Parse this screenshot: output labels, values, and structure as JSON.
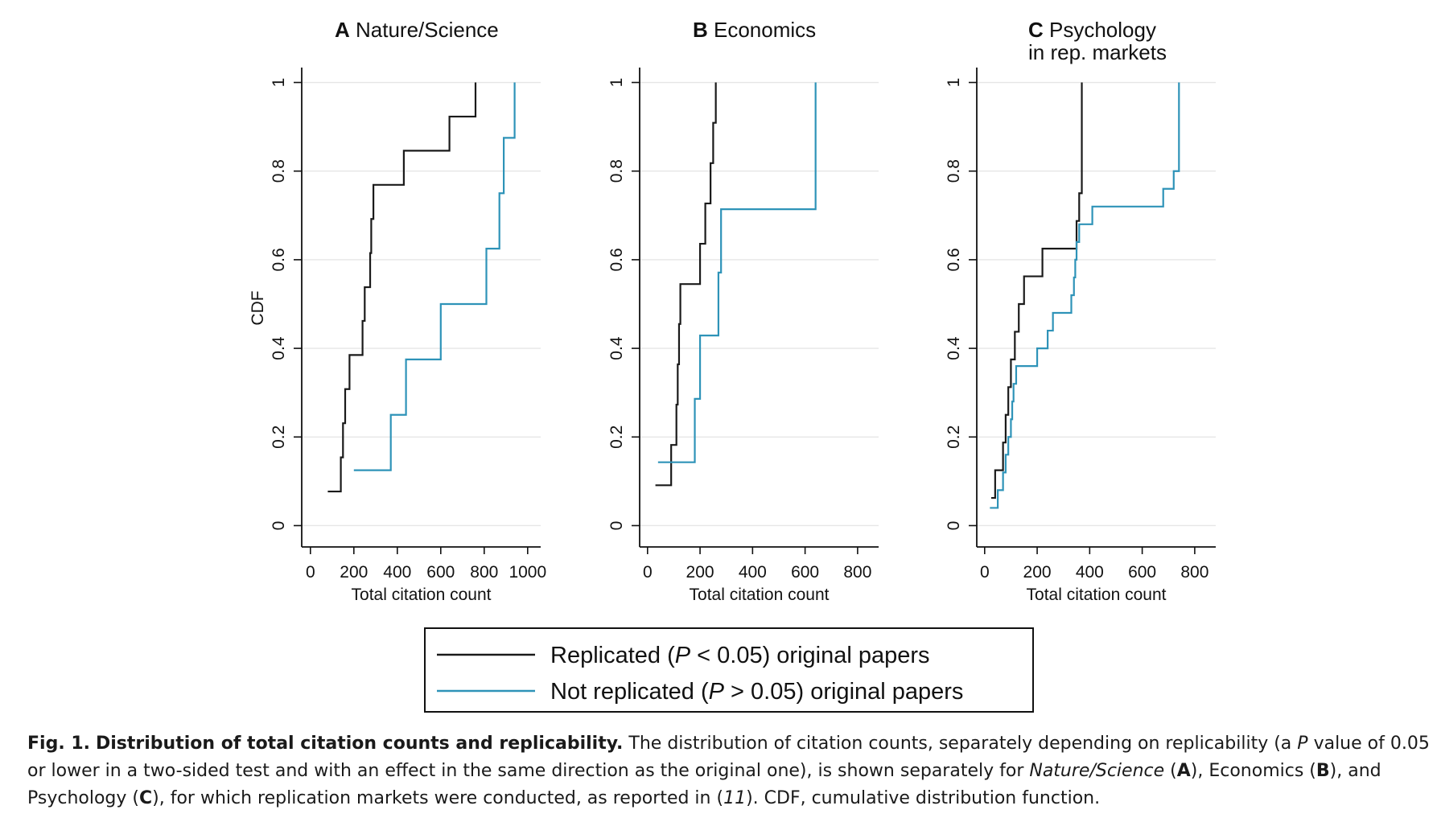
{
  "figure": {
    "ylabel": "CDF",
    "legend": {
      "entries": [
        {
          "color": "#1a1a1a",
          "pre": "Replicated (",
          "ital": "P",
          "post": " < 0.05) original papers"
        },
        {
          "color": "#2e93b8",
          "pre": "Not replicated (",
          "ital": "P",
          "post": " > 0.05) original papers"
        }
      ]
    }
  },
  "caption": {
    "fig_label": "Fig. 1.",
    "title": "Distribution of total citation counts and replicability.",
    "text_1": "The distribution of citation counts, separately depending on replicability (a ",
    "text_p": "P",
    "text_2": " value of 0.05 or lower in a two-sided test and with an effect in the same direction as the original one), is shown separately for ",
    "text_ns": "Nature/Science",
    "text_3": " (",
    "text_a": "A",
    "text_4": "), Economics (",
    "text_b": "B",
    "text_5": "), and Psychology (",
    "text_c": "C",
    "text_6": "), for which replication markets were conducted, as reported in (",
    "text_ref": "11",
    "text_7": "). CDF, cumulative distribution function."
  },
  "chart_data": [
    {
      "type": "line",
      "panel_letter": "A",
      "title_lines": [
        "Nature/Science"
      ],
      "xlabel": "Total citation count",
      "ylabel": "CDF",
      "xlim": [
        -40,
        1060
      ],
      "ylim": [
        -0.03,
        1.03
      ],
      "xticks": [
        0,
        200,
        400,
        600,
        800,
        1000
      ],
      "yticks": [
        0,
        0.2,
        0.4,
        0.6,
        0.8,
        1
      ],
      "ytick_labels": [
        "0",
        "0.2",
        "0.4",
        "0.6",
        "0.8",
        "1"
      ],
      "grid": true,
      "series": [
        {
          "name": "Replicated (P < 0.05) original papers",
          "color": "#1a1a1a",
          "x": [
            80,
            140,
            150,
            160,
            180,
            240,
            250,
            275,
            280,
            290,
            430,
            640,
            760
          ],
          "y": [
            0.077,
            0.154,
            0.231,
            0.308,
            0.385,
            0.462,
            0.538,
            0.615,
            0.692,
            0.769,
            0.846,
            0.923,
            1.0
          ]
        },
        {
          "name": "Not replicated (P > 0.05) original papers",
          "color": "#2e93b8",
          "x": [
            200,
            370,
            440,
            600,
            810,
            870,
            890,
            940
          ],
          "y": [
            0.125,
            0.25,
            0.375,
            0.5,
            0.625,
            0.75,
            0.875,
            1.0
          ]
        }
      ]
    },
    {
      "type": "line",
      "panel_letter": "B",
      "title_lines": [
        "Economics"
      ],
      "xlabel": "Total citation count",
      "ylabel": "",
      "xlim": [
        -30,
        880
      ],
      "ylim": [
        -0.03,
        1.03
      ],
      "xticks": [
        0,
        200,
        400,
        600,
        800
      ],
      "yticks": [
        0,
        0.2,
        0.4,
        0.6,
        0.8,
        1
      ],
      "ytick_labels": [
        "0",
        "0.2",
        "0.4",
        "0.6",
        "0.8",
        "1"
      ],
      "grid": true,
      "series": [
        {
          "name": "Replicated (P < 0.05) original papers",
          "color": "#1a1a1a",
          "x": [
            30,
            90,
            110,
            115,
            120,
            125,
            200,
            220,
            240,
            250,
            260
          ],
          "y": [
            0.091,
            0.182,
            0.273,
            0.364,
            0.455,
            0.545,
            0.636,
            0.727,
            0.818,
            0.909,
            1.0
          ]
        },
        {
          "name": "Not replicated (P > 0.05) original papers",
          "color": "#2e93b8",
          "x": [
            40,
            180,
            200,
            270,
            280,
            640
          ],
          "y": [
            0.143,
            0.286,
            0.429,
            0.571,
            0.714,
            1.0
          ]
        }
      ]
    },
    {
      "type": "line",
      "panel_letter": "C",
      "title_lines": [
        "Psychology",
        "in rep. markets"
      ],
      "xlabel": "Total citation count",
      "ylabel": "",
      "xlim": [
        -30,
        880
      ],
      "ylim": [
        -0.03,
        1.03
      ],
      "xticks": [
        0,
        200,
        400,
        600,
        800
      ],
      "yticks": [
        0,
        0.2,
        0.4,
        0.6,
        0.8,
        1
      ],
      "ytick_labels": [
        "0",
        "0.2",
        "0.4",
        "0.6",
        "0.8",
        "1"
      ],
      "grid": true,
      "series": [
        {
          "name": "Replicated (P < 0.05) original papers",
          "color": "#1a1a1a",
          "x": [
            25,
            40,
            70,
            80,
            90,
            100,
            115,
            130,
            150,
            220,
            350,
            360,
            370
          ],
          "y": [
            0.0625,
            0.125,
            0.1875,
            0.25,
            0.3125,
            0.375,
            0.4375,
            0.5,
            0.5625,
            0.625,
            0.6875,
            0.75,
            1.0
          ]
        },
        {
          "name": "Not replicated (P > 0.05) original papers",
          "color": "#2e93b8",
          "x": [
            20,
            50,
            70,
            80,
            90,
            100,
            105,
            110,
            120,
            200,
            240,
            260,
            330,
            340,
            345,
            350,
            360,
            410,
            680,
            720,
            740
          ],
          "y": [
            0.04,
            0.08,
            0.12,
            0.16,
            0.2,
            0.24,
            0.28,
            0.32,
            0.36,
            0.4,
            0.44,
            0.48,
            0.52,
            0.56,
            0.6,
            0.64,
            0.68,
            0.72,
            0.76,
            0.8,
            1.0
          ]
        }
      ]
    }
  ]
}
